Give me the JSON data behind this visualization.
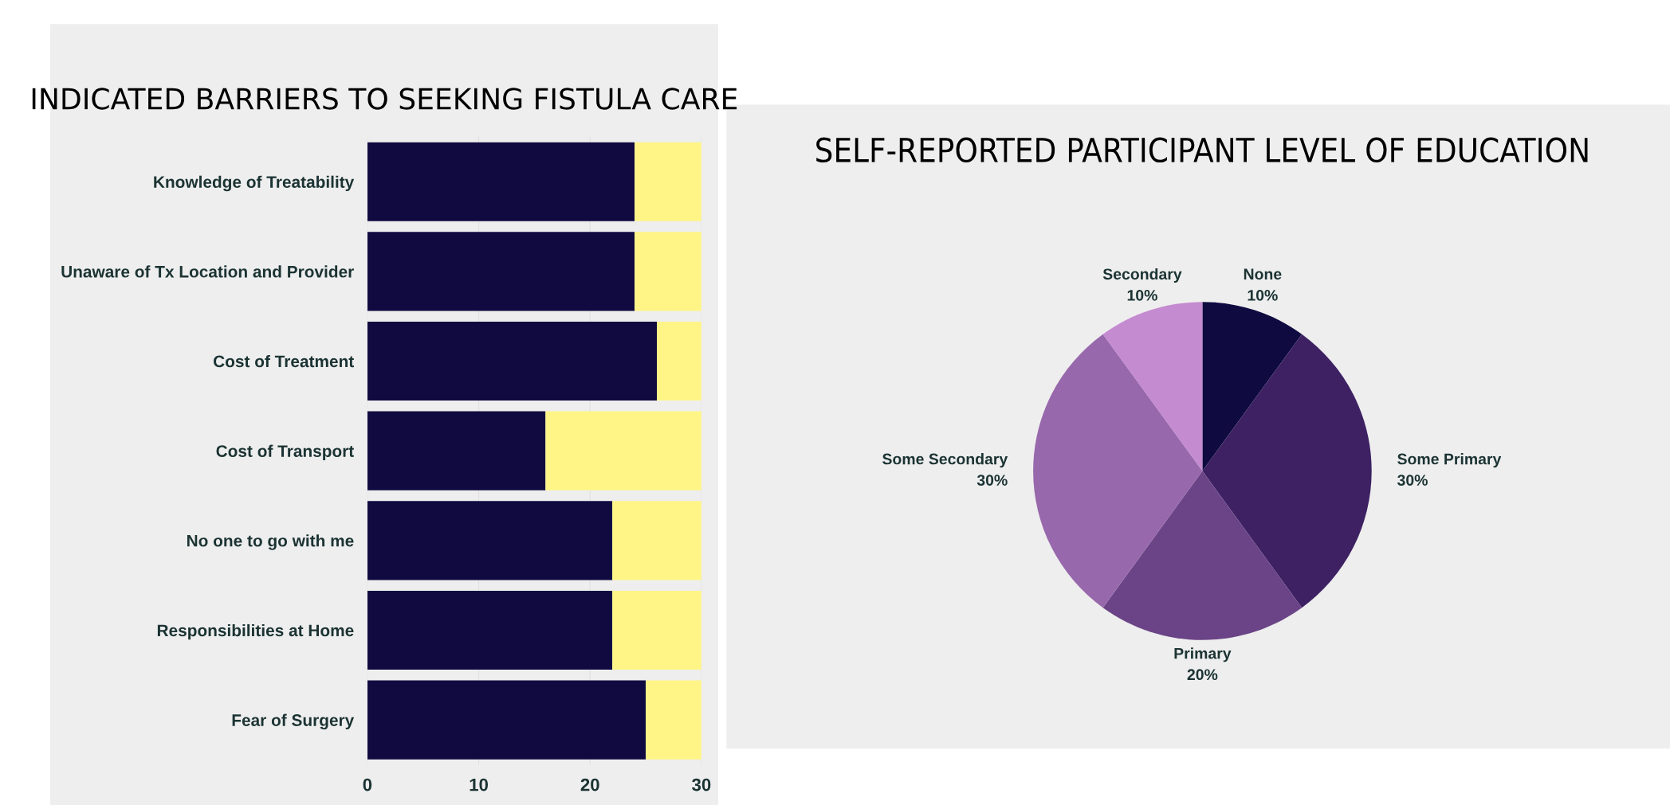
{
  "chart_data": [
    {
      "type": "bar",
      "title": "INDICATED BARRIERS TO SEEKING FISTULA CARE",
      "orientation": "horizontal",
      "stacked": true,
      "categories": [
        "Knowledge of Treatability",
        "Unaware of Tx Location and Provider",
        "Cost of Treatment",
        "Cost of Transport",
        "No one to go with me",
        "Responsibilities at Home",
        "Fear of Surgery"
      ],
      "series": [
        {
          "color": "#100a40",
          "values": [
            24,
            24,
            26,
            16,
            22,
            22,
            25
          ]
        },
        {
          "color": "#fff587",
          "values": [
            6,
            6,
            4,
            14,
            8,
            8,
            5
          ]
        }
      ],
      "xlim": [
        0,
        30
      ],
      "xticks": [
        0,
        10,
        20,
        30
      ],
      "grid": "x",
      "legend": false
    },
    {
      "type": "pie",
      "title": "SELF-REPORTED PARTICIPANT LEVEL OF EDUCATION",
      "categories": [
        "None",
        "Some Primary",
        "Primary",
        "Some Secondary",
        "Secondary"
      ],
      "values": [
        10,
        30,
        20,
        30,
        10
      ],
      "value_labels": [
        "10%",
        "30%",
        "20%",
        "30%",
        "10%"
      ],
      "colors": [
        "#0f0a40",
        "#3d2163",
        "#6b4487",
        "#9868ac",
        "#c48bd0"
      ]
    }
  ]
}
